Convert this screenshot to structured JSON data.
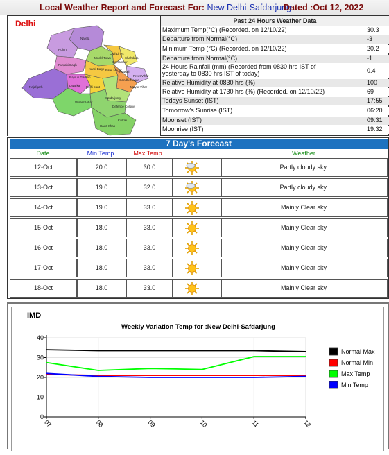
{
  "header": {
    "title_prefix": "Local Weather Report and Forecast For:",
    "station": "New Delhi-Safdarjung",
    "dated": "Dated :Oct 12, 2022"
  },
  "map": {
    "region_label": "Delhi",
    "district_names": [
      "Narela",
      "Rohini",
      "Model Town",
      "Civil Lines",
      "Shahdara",
      "Seelampur",
      "Punjabi Bagh",
      "Karol Bagh",
      "Rajouri Garden",
      "Patel Nagar",
      "Kotwali",
      "Preet Vihar",
      "Gandhi Nagar",
      "Najafgarh",
      "Dwarka",
      "Delhi cant",
      "Vasant Vihar",
      "Safdarjung",
      "Defence Colony",
      "Kalkaji",
      "Hauz Khas",
      "Mayur Vihar"
    ]
  },
  "past24": {
    "heading": "Past 24 Hours Weather Data",
    "rows": [
      {
        "label": "Maximum Temp(°C) (Recorded. on 12/10/22)",
        "value": "30.3"
      },
      {
        "label": "Departure from Normal(°C)",
        "value": "-3"
      },
      {
        "label": "Minimum Temp (°C) (Recorded. on 12/10/22)",
        "value": "20.2"
      },
      {
        "label": "Departure from Normal(°C)",
        "value": "-1"
      },
      {
        "label": "24 Hours Rainfall (mm) (Recorded from 0830 hrs IST of yesterday to 0830 hrs IST of today)",
        "value": "0.4"
      },
      {
        "label": "Relative Humidity at 0830 hrs (%)",
        "value": "100"
      },
      {
        "label": "Relative Humidity at 1730 hrs (%) (Recorded. on 12/10/22)",
        "value": "69"
      },
      {
        "label": "Todays Sunset (IST)",
        "value": "17:55"
      },
      {
        "label": "Tomorrow's Sunrise (IST)",
        "value": "06:20"
      },
      {
        "label": "Moonset (IST)",
        "value": "09:31"
      },
      {
        "label": "Moonrise (IST)",
        "value": "19:32"
      }
    ]
  },
  "forecast": {
    "title": "7 Day's Forecast",
    "headers": {
      "date": "Date",
      "min": "Min Temp",
      "max": "Max Temp",
      "weather": "Weather"
    },
    "rows": [
      {
        "date": "12-Oct",
        "min": "20.0",
        "max": "30.0",
        "weather": "Partly cloudy sky",
        "icon": "partly-cloudy-icon"
      },
      {
        "date": "13-Oct",
        "min": "19.0",
        "max": "32.0",
        "weather": "Partly cloudy sky",
        "icon": "partly-cloudy-icon"
      },
      {
        "date": "14-Oct",
        "min": "19.0",
        "max": "33.0",
        "weather": "Mainly Clear sky",
        "icon": "clear-sky-icon"
      },
      {
        "date": "15-Oct",
        "min": "18.0",
        "max": "33.0",
        "weather": "Mainly Clear sky",
        "icon": "clear-sky-icon"
      },
      {
        "date": "16-Oct",
        "min": "18.0",
        "max": "33.0",
        "weather": "Mainly Clear sky",
        "icon": "clear-sky-icon"
      },
      {
        "date": "17-Oct",
        "min": "18.0",
        "max": "33.0",
        "weather": "Mainly Clear sky",
        "icon": "clear-sky-icon"
      },
      {
        "date": "18-Oct",
        "min": "18.0",
        "max": "33.0",
        "weather": "Mainly Clear sky",
        "icon": "clear-sky-icon"
      }
    ]
  },
  "chart_data": {
    "type": "line",
    "brand": "IMD",
    "title": "Weekly Variation Temp for :New Delhi-Safdarjung",
    "x": [
      "07",
      "08",
      "09",
      "10",
      "11",
      "12"
    ],
    "ylim": [
      0,
      40
    ],
    "yticks": [
      0,
      10,
      20,
      30,
      40
    ],
    "grid": true,
    "legend_position": "right",
    "series": [
      {
        "name": "Normal Max",
        "color": "#000000",
        "values": [
          34,
          33.5,
          33.5,
          33.5,
          33.5,
          33
        ]
      },
      {
        "name": "Normal Min",
        "color": "#ff0000",
        "values": [
          21.5,
          21,
          21,
          21,
          21,
          21
        ]
      },
      {
        "name": "Max Temp",
        "color": "#00ff00",
        "values": [
          27.5,
          23.5,
          24.5,
          24,
          30.5,
          30.5
        ]
      },
      {
        "name": "Min Temp",
        "color": "#0000ff",
        "values": [
          22,
          20.5,
          20,
          20,
          20,
          20.5
        ]
      }
    ]
  },
  "colors": {
    "min_temp_header": "#1a2fd0",
    "max_temp_header": "#d00000",
    "weather_header": "#138a13",
    "date_header": "#138a13",
    "forecast_title_bg": "#1d72c0"
  }
}
